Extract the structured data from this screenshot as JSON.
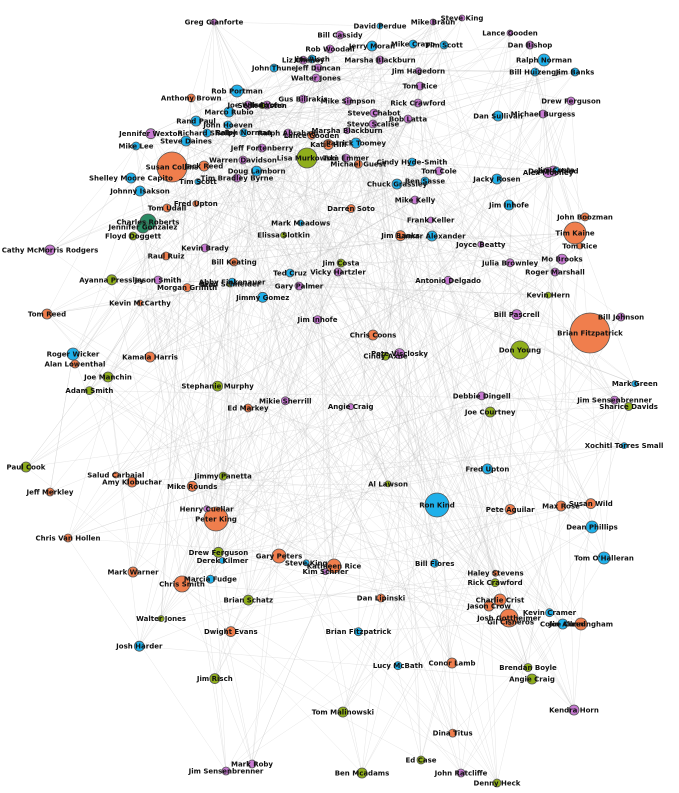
{
  "palette": {
    "blue": "#1fb0ea",
    "orange": "#f07e4d",
    "green": "#8fae1b",
    "purple": "#c77ad2",
    "teal": "#2a8a63",
    "edge": "#bdbdbd",
    "background": "#ffffff"
  },
  "nodes": [
    {
      "label": "Greg Gianforte",
      "color": "purple",
      "size": 3
    },
    {
      "label": "David Perdue",
      "color": "blue",
      "size": 3
    },
    {
      "label": "Mike Braun",
      "color": "purple",
      "size": 3
    },
    {
      "label": "Steve King",
      "color": "purple",
      "size": 3
    },
    {
      "label": "Lance Gooden",
      "color": "purple",
      "size": 3
    },
    {
      "label": "Bill Cassidy",
      "color": "purple",
      "size": 4
    },
    {
      "label": "Jerry Moran",
      "color": "blue",
      "size": 5
    },
    {
      "label": "Mike Crapo",
      "color": "blue",
      "size": 4
    },
    {
      "label": "Tim Scott",
      "color": "blue",
      "size": 4
    },
    {
      "label": "Rob Woodall",
      "color": "purple",
      "size": 4
    },
    {
      "label": "Jim Risch",
      "color": "blue",
      "size": 4
    },
    {
      "label": "Marsha Blackburn",
      "color": "purple",
      "size": 4
    },
    {
      "label": "Dan Bishop",
      "color": "purple",
      "size": 4
    },
    {
      "label": "Ralph Norman",
      "color": "blue",
      "size": 6
    },
    {
      "label": "John Thune",
      "color": "blue",
      "size": 4
    },
    {
      "label": "Jeff Duncan",
      "color": "purple",
      "size": 4
    },
    {
      "label": "Walter Jones",
      "color": "purple",
      "size": 4
    },
    {
      "label": "Jim Banks",
      "color": "blue",
      "size": 4
    },
    {
      "label": "Bill Huizenga",
      "color": "blue",
      "size": 4
    },
    {
      "label": "Rob Portman",
      "color": "blue",
      "size": 6
    },
    {
      "label": "Tom Rice",
      "color": "purple",
      "size": 4
    },
    {
      "label": "Rick Crawford",
      "color": "purple",
      "size": 4
    },
    {
      "label": "Marco Rubio",
      "color": "blue",
      "size": 5
    },
    {
      "label": "Joe Wilson",
      "color": "purple",
      "size": 4
    },
    {
      "label": "Ted Yoho",
      "color": "purple",
      "size": 4
    },
    {
      "label": "Gus Bilirakis",
      "color": "purple",
      "size": 4
    },
    {
      "label": "Mike Simpson",
      "color": "purple",
      "size": 4
    },
    {
      "label": "Dan Sullivan",
      "color": "blue",
      "size": 5
    },
    {
      "label": "Drew Ferguson",
      "color": "purple",
      "size": 4
    },
    {
      "label": "Bob Latta",
      "color": "purple",
      "size": 4
    },
    {
      "label": "Michael Burgess",
      "color": "purple",
      "size": 4
    },
    {
      "label": "Cathy McMorris Rodgers",
      "color": "purple",
      "size": 5
    },
    {
      "label": "Rand Paul",
      "color": "blue",
      "size": 5
    },
    {
      "label": "John Hoeven",
      "color": "blue",
      "size": 4
    },
    {
      "label": "Steve Daines",
      "color": "blue",
      "size": 5
    },
    {
      "label": "Richard Shelby",
      "color": "blue",
      "size": 4
    },
    {
      "label": "Ralph Abraham",
      "color": "purple",
      "size": 4
    },
    {
      "label": "Steve Chabot",
      "color": "purple",
      "size": 4
    },
    {
      "label": "Stevo Scalise",
      "color": "purple",
      "size": 4
    },
    {
      "label": "Mike Lee",
      "color": "blue",
      "size": 4
    },
    {
      "label": "Jeff Fortenberry",
      "color": "purple",
      "size": 4
    },
    {
      "label": "Patrick Toomey",
      "color": "blue",
      "size": 5
    },
    {
      "label": "Susan Collins",
      "color": "orange",
      "size": 15
    },
    {
      "label": "Lisa Murkowski",
      "color": "green",
      "size": 10
    },
    {
      "label": "Warren Davidson",
      "color": "purple",
      "size": 4
    },
    {
      "label": "Tom Emmer",
      "color": "purple",
      "size": 4
    },
    {
      "label": "Cindy Hyde-Smith",
      "color": "blue",
      "size": 4
    },
    {
      "label": "Tom Cole",
      "color": "purple",
      "size": 4
    },
    {
      "label": "Shelley Moore Capito",
      "color": "blue",
      "size": 5
    },
    {
      "label": "Johnny Isakson",
      "color": "blue",
      "size": 5
    },
    {
      "label": "Tim Bradley Byrne",
      "color": "purple",
      "size": 4
    },
    {
      "label": "Jack Reed",
      "color": "orange",
      "size": 5
    },
    {
      "label": "Charles Roberts",
      "color": "teal",
      "size": 8
    },
    {
      "label": "Jennifer Gonzalez",
      "color": "teal",
      "size": 6
    },
    {
      "label": "Floyd Doggett",
      "color": "green",
      "size": 4
    },
    {
      "label": "Raul Ruiz",
      "color": "orange",
      "size": 4
    },
    {
      "label": "Kevin Brady",
      "color": "purple",
      "size": 4
    },
    {
      "label": "Tom Udall",
      "color": "orange",
      "size": 4
    },
    {
      "label": "Chuck Grassley",
      "color": "blue",
      "size": 5
    },
    {
      "label": "Jim Sensenbrenner",
      "color": "purple",
      "size": 4
    },
    {
      "label": "Bill Keating",
      "color": "orange",
      "size": 4
    },
    {
      "label": "Jim Costa",
      "color": "green",
      "size": 4
    },
    {
      "label": "Jason Smith",
      "color": "purple",
      "size": 4
    },
    {
      "label": "Gary Palmer",
      "color": "purple",
      "size": 4
    },
    {
      "label": "Mike Kelly",
      "color": "purple",
      "size": 4
    },
    {
      "label": "Ted Cruz",
      "color": "blue",
      "size": 4
    },
    {
      "label": "Vicky Hartzler",
      "color": "purple",
      "size": 4
    },
    {
      "label": "Ben Sasse",
      "color": "blue",
      "size": 4
    },
    {
      "label": "Lamar Alexander",
      "color": "blue",
      "size": 5
    },
    {
      "label": "Roger Marshall",
      "color": "purple",
      "size": 4
    },
    {
      "label": "Jim Inhofe",
      "color": "blue",
      "size": 5
    },
    {
      "label": "Tom Reed",
      "color": "orange",
      "size": 5
    },
    {
      "label": "Joe Manchin",
      "color": "green",
      "size": 5
    },
    {
      "label": "Roger Wicker",
      "color": "blue",
      "size": 6
    },
    {
      "label": "Alan Lowenthal",
      "color": "orange",
      "size": 4
    },
    {
      "label": "Kamala Harris",
      "color": "orange",
      "size": 5
    },
    {
      "label": "Paul Cook",
      "color": "green",
      "size": 5
    },
    {
      "label": "Jeff Merkley",
      "color": "orange",
      "size": 4
    },
    {
      "label": "Chris Van Hollen",
      "color": "orange",
      "size": 4
    },
    {
      "label": "Ed Markey",
      "color": "orange",
      "size": 4
    },
    {
      "label": "Peter King",
      "color": "orange",
      "size": 12
    },
    {
      "label": "Ron Kind",
      "color": "blue",
      "size": 12
    },
    {
      "label": "Brian Fitzpatrick",
      "color": "orange",
      "size": 20
    },
    {
      "label": "Don Young",
      "color": "green",
      "size": 9
    },
    {
      "label": "Chris Coons",
      "color": "orange",
      "size": 5
    },
    {
      "label": "Tim Kaine",
      "color": "orange",
      "size": 11
    },
    {
      "label": "Bill Johnson",
      "color": "purple",
      "size": 4
    },
    {
      "label": "Dan Lipinski",
      "color": "orange",
      "size": 4
    },
    {
      "label": "Josh Gottheimer",
      "color": "orange",
      "size": 9
    },
    {
      "label": "Gary Peters",
      "color": "orange",
      "size": 7
    },
    {
      "label": "Amy Klobuchar",
      "color": "orange",
      "size": 5
    },
    {
      "label": "Mark Warner",
      "color": "orange",
      "size": 5
    },
    {
      "label": "Chris Smith",
      "color": "orange",
      "size": 8
    },
    {
      "label": "Dean Phillips",
      "color": "blue",
      "size": 6
    },
    {
      "label": "Tom O'Halleran",
      "color": "blue",
      "size": 6
    },
    {
      "label": "Kathleen Rice",
      "color": "orange",
      "size": 7
    },
    {
      "label": "Joe Cunningham",
      "color": "orange",
      "size": 6
    },
    {
      "label": "Charlie Crist",
      "color": "orange",
      "size": 6
    },
    {
      "label": "Jason Crow",
      "color": "orange",
      "size": 5
    },
    {
      "label": "Ben Mcadams",
      "color": "green",
      "size": 5
    },
    {
      "label": "Denny Heck",
      "color": "green",
      "size": 4
    },
    {
      "label": "John Ratcliffe",
      "color": "purple",
      "size": 4
    },
    {
      "label": "Ed Case",
      "color": "green",
      "size": 4
    },
    {
      "label": "Mark Roby",
      "color": "purple",
      "size": 4
    },
    {
      "label": "Jim Sensenbrenner",
      "color": "purple",
      "size": 4
    },
    {
      "label": "Kendra Horn",
      "color": "purple",
      "size": 5
    },
    {
      "label": "Max Rose",
      "color": "orange",
      "size": 5
    },
    {
      "label": "Angie Craig",
      "color": "green",
      "size": 5
    },
    {
      "label": "Conor Lamb",
      "color": "orange",
      "size": 5
    }
  ],
  "extra_labels": [
    "Steve King",
    "Lance Gooden",
    "Jim Risch",
    "Marsha Blackburn",
    "Ralph Norman",
    "Jim Banks",
    "Walter Jones",
    "Jim Inhofe",
    "Doug Lamborn",
    "Tom Rice",
    "Rick Crawford",
    "Mo Brooks",
    "Tim Scott",
    "John Boozman",
    "Drew Ferguson",
    "Frank Keller",
    "Bill Flores",
    "Mike Rounds",
    "Kevin Hern",
    "Liz Cheney",
    "Fred Upton",
    "Kevin McCarthy",
    "Jimmy Panetta",
    "Pete Visclosky",
    "Derek Kilmer",
    "Anthony Brown",
    "Stephanie Murphy",
    "Henry Cuellar",
    "Marcia Fudge",
    "Dwight Evans",
    "Brad Schneider",
    "Julia Brownley",
    "Jacky Rosen",
    "Fred Upton",
    "Adam Smith",
    "Bill Pascrell",
    "Mark Meadows",
    "Morgan Griffith",
    "Brian Schatz",
    "Jim Hagedorn",
    "Kevin Cramer",
    "Pete Aguilar",
    "Al Lawson",
    "Debbie Dingell",
    "Jimmy Gomez",
    "Salud Carbajal",
    "Brendan Boyle",
    "Deb Haaland",
    "Jim Costa",
    "Darren Soto",
    "Joe Courtney",
    "Angie Craig",
    "Abby Finkenauer",
    "Katie Hill",
    "Elissa Slotkin",
    "Antonio Delgado",
    "Josh Harder",
    "Haley Stevens",
    "Sharice Davids",
    "Jennifer Wexton",
    "Xochitl Torres Small",
    "Dina Titus",
    "Ayanna Pressley",
    "Kim Schrier",
    "Lucy McBath",
    "Susan Wild",
    "Sean Casten",
    "Mikie Sherrill",
    "Colin Allred",
    "Gil Cisneros",
    "Cindy Axne",
    "Alex Mooney",
    "Mark Green",
    "Michael Guest",
    "Tom Malinowski",
    "Joyce Beatty",
    "Brian Fitzpatrick"
  ],
  "edges_count": 700
}
